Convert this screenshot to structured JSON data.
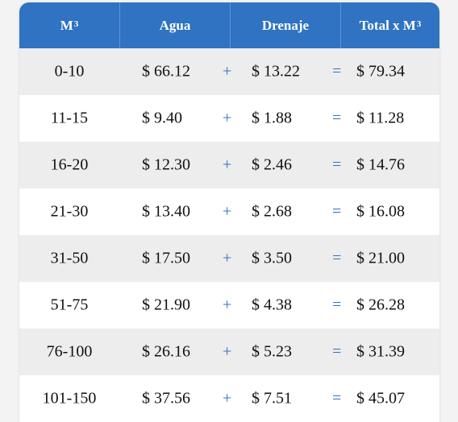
{
  "table": {
    "headers": {
      "m3_label": "M",
      "m3_sup": "3",
      "agua": "Agua",
      "drenaje": "Drenaje",
      "total_label": "Total x M",
      "total_sup": "3"
    },
    "operators": {
      "plus": "+",
      "equals": "="
    },
    "rows": [
      {
        "range": "0-10",
        "agua": "$ 66.12",
        "drenaje": "$ 13.22",
        "total": "$ 79.34"
      },
      {
        "range": "11-15",
        "agua": "$ 9.40",
        "drenaje": "$ 1.88",
        "total": "$ 11.28"
      },
      {
        "range": "16-20",
        "agua": "$ 12.30",
        "drenaje": "$ 2.46",
        "total": "$ 14.76"
      },
      {
        "range": "21-30",
        "agua": "$ 13.40",
        "drenaje": "$ 2.68",
        "total": "$ 16.08"
      },
      {
        "range": "31-50",
        "agua": "$ 17.50",
        "drenaje": "$ 3.50",
        "total": "$ 21.00"
      },
      {
        "range": "51-75",
        "agua": "$ 21.90",
        "drenaje": "$ 4.38",
        "total": "$ 26.28"
      },
      {
        "range": "76-100",
        "agua": "$ 26.16",
        "drenaje": "$ 5.23",
        "total": "$ 31.39"
      },
      {
        "range": "101-150",
        "agua": "$ 37.56",
        "drenaje": "$ 7.51",
        "total": "$ 45.07"
      }
    ],
    "colors": {
      "header_bg": "#2f73c2",
      "operator": "#2f73c2",
      "shade_row": "#ededed"
    }
  }
}
